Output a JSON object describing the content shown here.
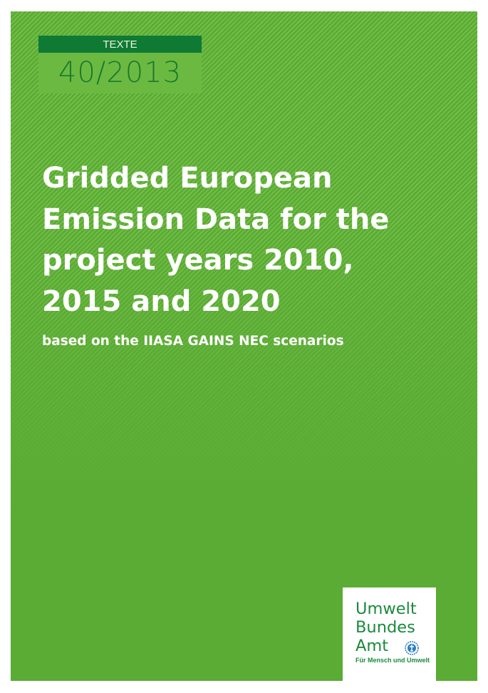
{
  "series": {
    "label": "TEXTE",
    "number": "40/2013"
  },
  "title": {
    "lines": [
      "Gridded European",
      "Emission Data for the",
      "project years 2010,",
      "2015 and 2020"
    ]
  },
  "subtitle": "based on the IIASA GAINS NEC scenarios",
  "publisher": {
    "lines": [
      "Umwelt",
      "Bundes",
      "Amt"
    ],
    "tagline": "Für Mensch und Umwelt",
    "emblem_icon": "un-emblem-icon"
  },
  "colors": {
    "background": "#5aac34",
    "series_band": "#0f7a33",
    "series_box": "#6cb942",
    "logo_text": "#1a8a3c"
  }
}
